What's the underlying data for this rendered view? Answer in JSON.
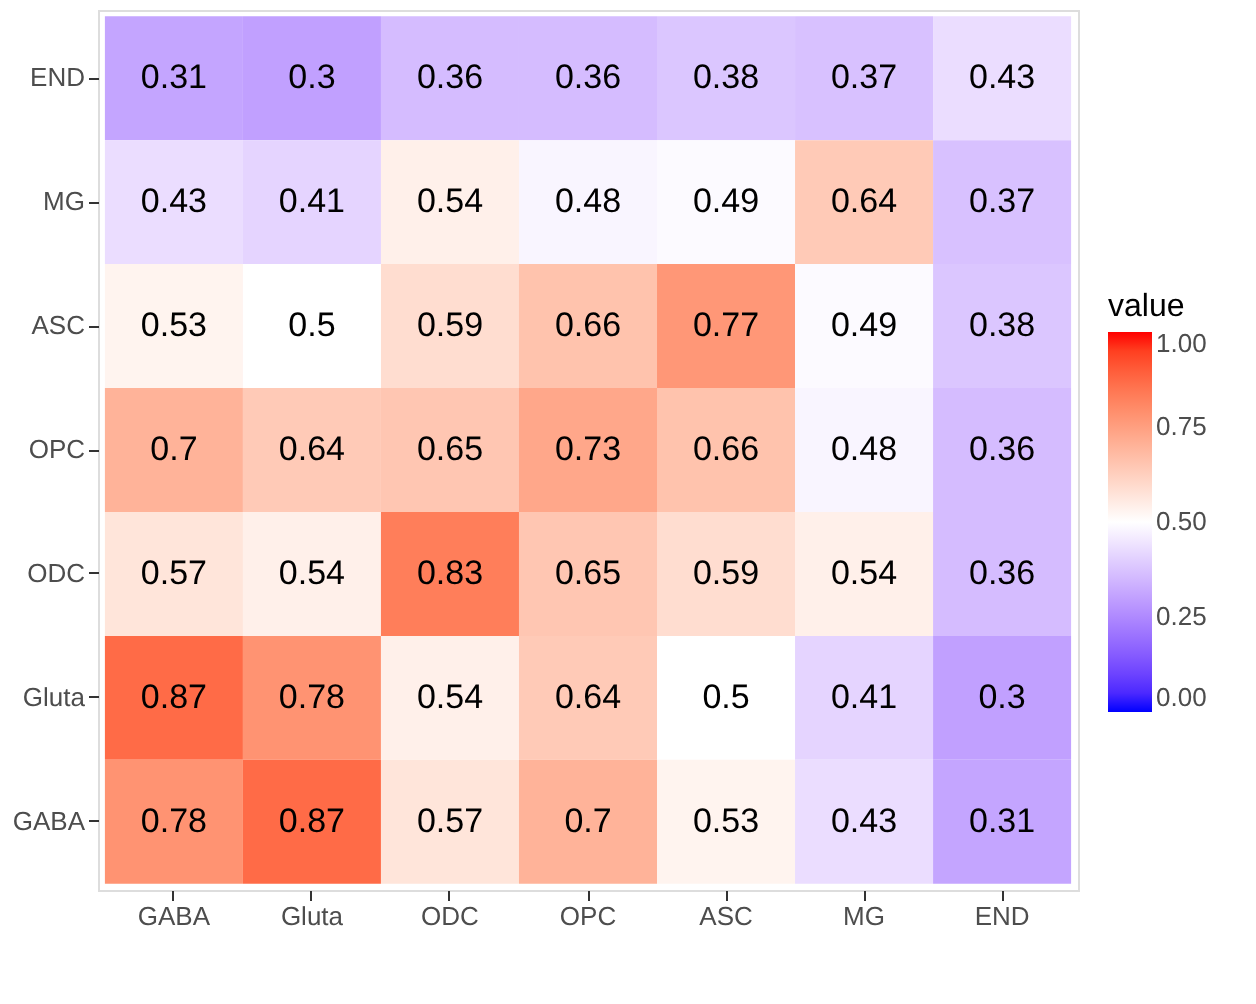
{
  "chart_data": {
    "type": "heatmap",
    "legend_title": "value",
    "categories": [
      "GABA",
      "Gluta",
      "ODC",
      "OPC",
      "ASC",
      "MG",
      "END"
    ],
    "y_categories": [
      "END",
      "MG",
      "ASC",
      "OPC",
      "ODC",
      "Gluta",
      "GABA"
    ],
    "cells": [
      [
        0.31,
        0.3,
        0.36,
        0.36,
        0.38,
        0.37,
        0.43
      ],
      [
        0.43,
        0.41,
        0.54,
        0.48,
        0.49,
        0.64,
        0.37
      ],
      [
        0.53,
        0.5,
        0.59,
        0.66,
        0.77,
        0.49,
        0.38
      ],
      [
        0.7,
        0.64,
        0.65,
        0.73,
        0.66,
        0.48,
        0.36
      ],
      [
        0.57,
        0.54,
        0.83,
        0.65,
        0.59,
        0.54,
        0.36
      ],
      [
        0.87,
        0.78,
        0.54,
        0.64,
        0.5,
        0.41,
        0.3
      ],
      [
        0.78,
        0.87,
        0.57,
        0.7,
        0.53,
        0.43,
        0.31
      ]
    ],
    "colors": [
      "#0000ff",
      "#ffffff",
      "#ff0000"
    ],
    "clim": [
      0,
      1
    ],
    "cticks": [
      {
        "value": 0,
        "label": "0.00"
      },
      {
        "value": 0.25,
        "label": "0.25"
      },
      {
        "value": 0.5,
        "label": "0.50"
      },
      {
        "value": 0.75,
        "label": "0.75"
      },
      {
        "value": 1,
        "label": "1.00"
      }
    ],
    "data_labels": true
  }
}
